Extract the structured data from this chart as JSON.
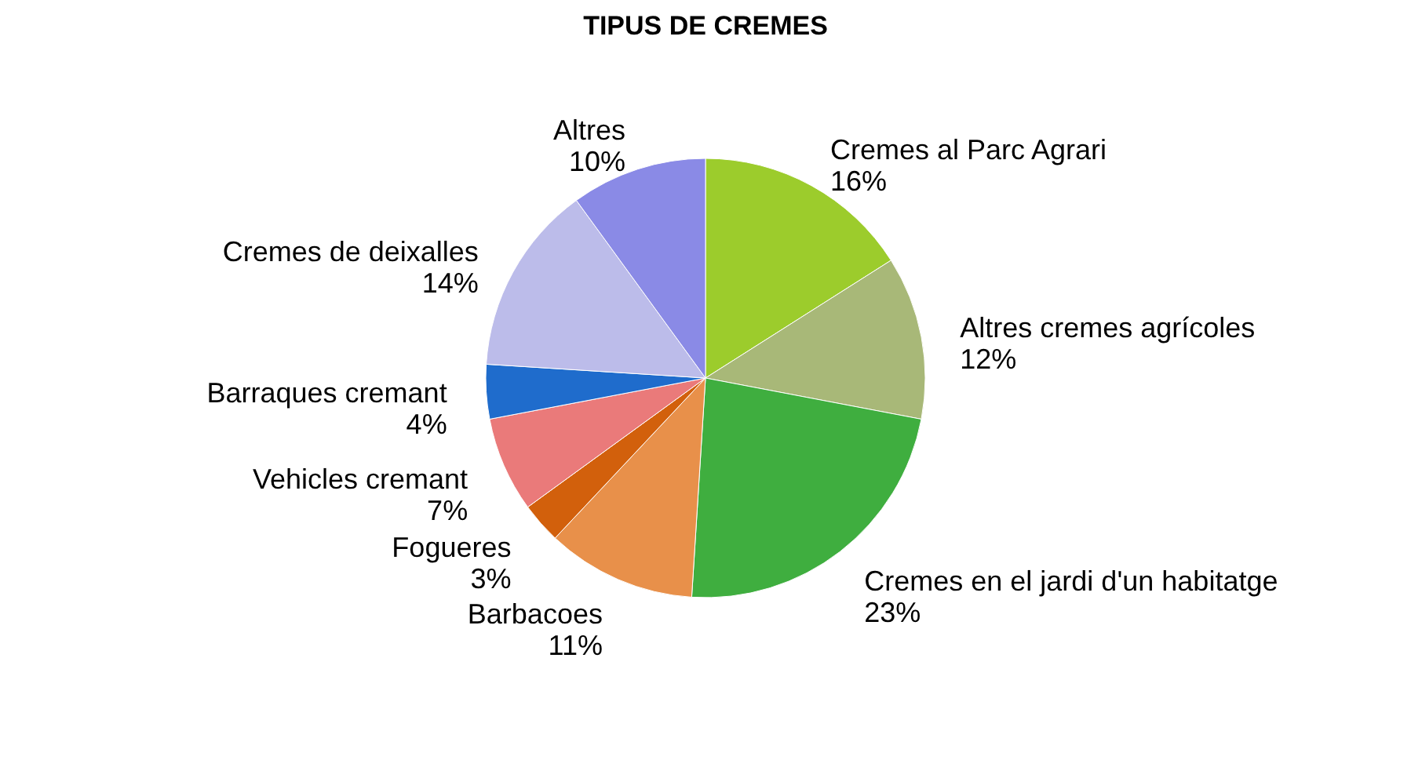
{
  "chart_data": {
    "type": "pie",
    "title": "TIPUS DE CREMES",
    "categories": [
      "Cremes al Parc Agrari",
      "Altres cremes agrícoles",
      "Cremes en el jardi d'un habitatge",
      "Barbacoes",
      "Fogueres",
      "Vehicles cremant",
      "Barraques cremant",
      "Cremes de deixalles",
      "Altres"
    ],
    "values": [
      16,
      12,
      23,
      11,
      3,
      7,
      4,
      14,
      10
    ],
    "value_labels": [
      "16%",
      "12%",
      "23%",
      "11%",
      "3%",
      "7%",
      "4%",
      "14%",
      "10%"
    ],
    "colors": [
      "#9ccc2c",
      "#a8b878",
      "#3fae3f",
      "#e8904a",
      "#d2600c",
      "#ea7a7a",
      "#1f6ccc",
      "#bcbcea",
      "#8a8ae6"
    ],
    "legend": false
  }
}
